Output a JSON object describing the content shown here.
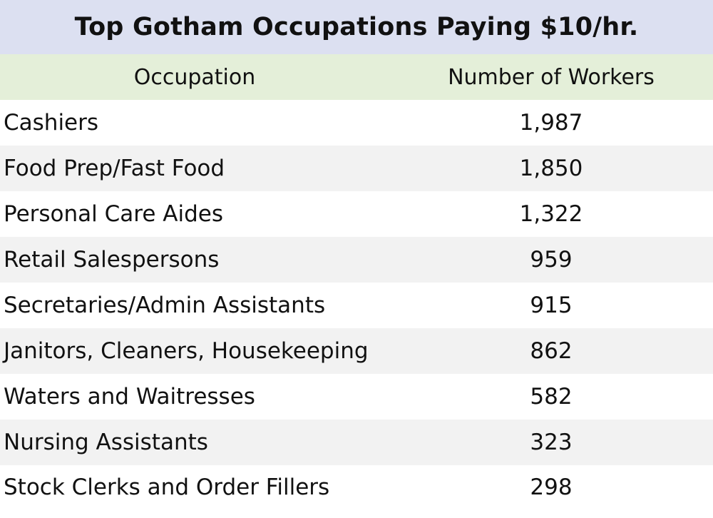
{
  "chart_data": {
    "type": "table",
    "title": "Top Gotham Occupations Paying $10/hr.",
    "columns": [
      "Occupation",
      "Number of Workers"
    ],
    "rows": [
      [
        "Cashiers",
        "1,987"
      ],
      [
        "Food Prep/Fast Food",
        "1,850"
      ],
      [
        "Personal Care Aides",
        "1,322"
      ],
      [
        "Retail Salespersons",
        "959"
      ],
      [
        "Secretaries/Admin Assistants",
        "915"
      ],
      [
        "Janitors, Cleaners, Housekeeping",
        "862"
      ],
      [
        "Waters and Waitresses",
        "582"
      ],
      [
        "Nursing Assistants",
        "323"
      ],
      [
        "Stock Clerks and Order Fillers",
        "298"
      ]
    ],
    "values": [
      1987,
      1850,
      1322,
      959,
      915,
      862,
      582,
      323,
      298
    ]
  },
  "colors": {
    "title_background": "#dce0f1",
    "header_background": "#e4efd9",
    "row_stripe": "#f2f2f2",
    "row_plain": "#ffffff"
  }
}
